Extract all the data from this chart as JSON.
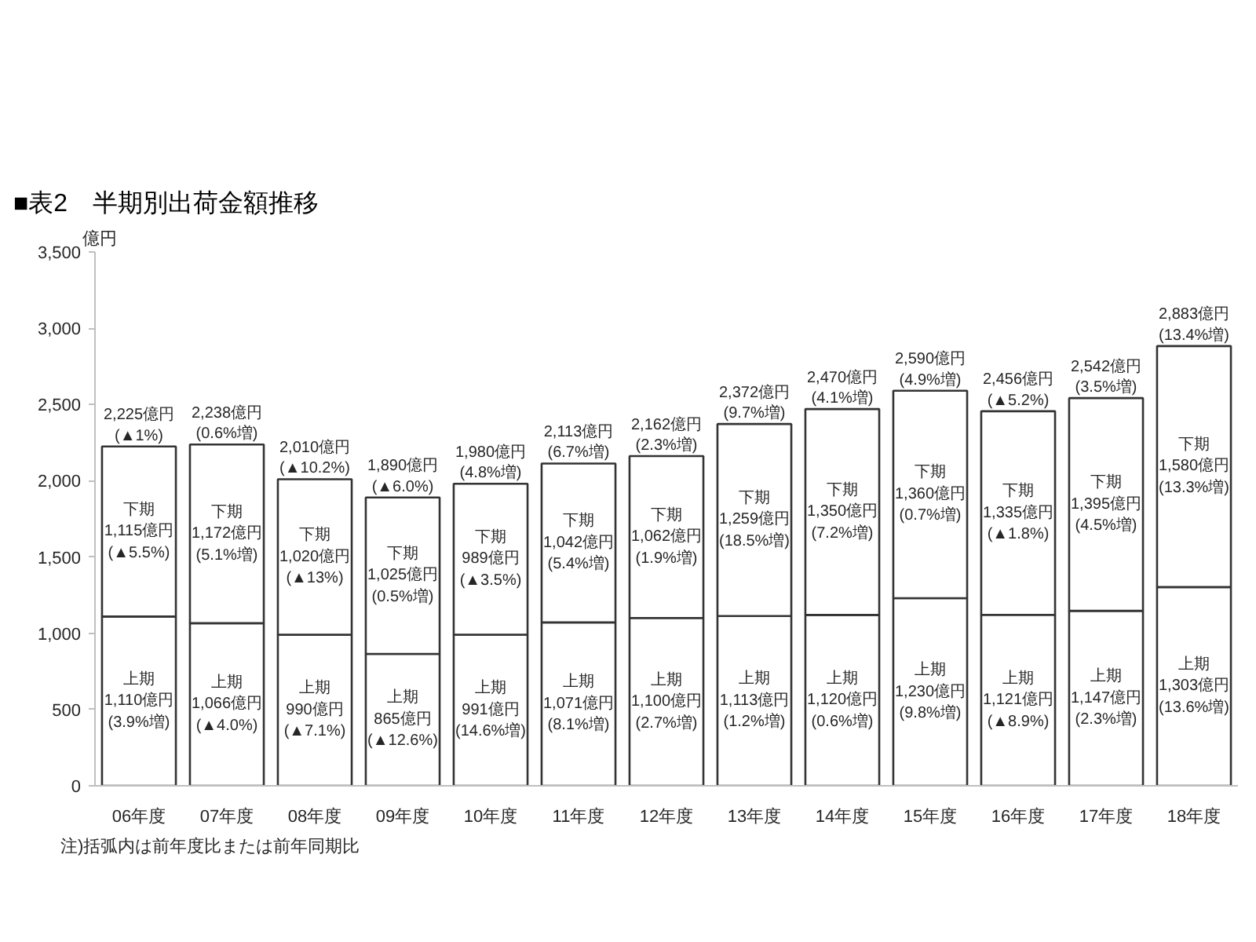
{
  "chart_data": {
    "type": "bar",
    "title": "■表2　半期別出荷金額推移",
    "ylabel": "億円",
    "categories": [
      "06年度",
      "07年度",
      "08年度",
      "09年度",
      "10年度",
      "11年度",
      "12年度",
      "13年度",
      "14年度",
      "15年度",
      "16年度",
      "17年度",
      "18年度"
    ],
    "stacked": true,
    "series": [
      {
        "name": "上期",
        "color": "#ffffff",
        "values": [
          1110,
          1066,
          990,
          865,
          991,
          1071,
          1100,
          1113,
          1120,
          1230,
          1121,
          1147,
          1303
        ],
        "value_labels": [
          "1,110億円\n(3.9%増)",
          "1,066億円\n(▲4.0%)",
          "990億円\n(▲7.1%)",
          "865億円\n(▲12.6%)",
          "991億円\n(14.6%増)",
          "1,071億円\n(8.1%増)",
          "1,100億円\n(2.7%増)",
          "1,113億円\n(1.2%増)",
          "1,120億円\n(0.6%増)",
          "1,230億円\n(9.8%増)",
          "1,121億円\n(▲8.9%)",
          "1,147億円\n(2.3%増)",
          "1,303億円\n(13.6%増)"
        ]
      },
      {
        "name": "下期",
        "color": "#ffffff",
        "values": [
          1115,
          1172,
          1020,
          1025,
          989,
          1042,
          1062,
          1259,
          1350,
          1360,
          1335,
          1395,
          1580
        ],
        "value_labels": [
          "1,115億円\n(▲5.5%)",
          "1,172億円\n(5.1%増)",
          "1,020億円\n(▲13%)",
          "1,025億円\n(0.5%増)",
          "989億円\n(▲3.5%)",
          "1,042億円\n(5.4%増)",
          "1,062億円\n(1.9%増)",
          "1,259億円\n(18.5%増)",
          "1,350億円\n(7.2%増)",
          "1,360億円\n(0.7%増)",
          "1,335億円\n(▲1.8%)",
          "1,395億円\n(4.5%増)",
          "1,580億円\n(13.3%増)"
        ]
      }
    ],
    "totals": [
      "2,225億円\n(▲1%)",
      "2,238億円\n(0.6%増)",
      "2,010億円\n(▲10.2%)",
      "1,890億円\n(▲6.0%)",
      "1,980億円\n(4.8%増)",
      "2,113億円\n(6.7%増)",
      "2,162億円\n(2.3%増)",
      "2,372億円\n(9.7%増)",
      "2,470億円\n(4.1%増)",
      "2,590億円\n(4.9%増)",
      "2,456億円\n(▲5.2%)",
      "2,542億円\n(3.5%増)",
      "2,883億円\n(13.4%増)"
    ],
    "ylim": [
      0,
      3500
    ],
    "yticks": [
      {
        "value": 0,
        "label": "0"
      },
      {
        "value": 500,
        "label": "500"
      },
      {
        "value": 1000,
        "label": "1,000"
      },
      {
        "value": 1500,
        "label": "1,500"
      },
      {
        "value": 2000,
        "label": "2,000"
      },
      {
        "value": 2500,
        "label": "2,500"
      },
      {
        "value": 3000,
        "label": "3,000"
      },
      {
        "value": 3500,
        "label": "3,500"
      }
    ],
    "annotations": [
      "注)括弧内は前年度比または前年同期比"
    ]
  }
}
